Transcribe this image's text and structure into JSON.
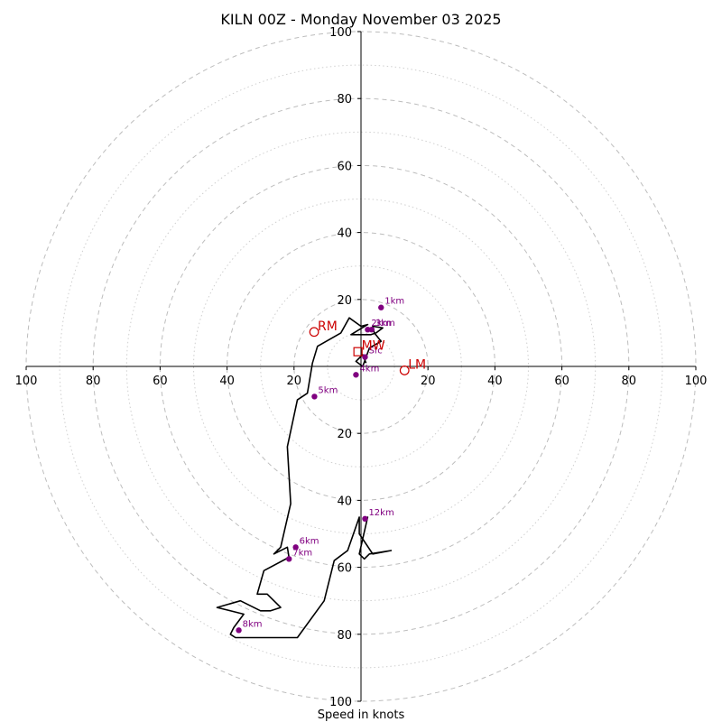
{
  "chart_data": {
    "type": "scatter",
    "title": "KILN 00Z - Monday November 03 2025",
    "xlabel": "Speed in knots",
    "ylabel": "",
    "xlim": [
      -100,
      100
    ],
    "ylim": [
      -100,
      100
    ],
    "major_rings": [
      20,
      40,
      60,
      80,
      100
    ],
    "minor_rings": [
      10,
      30,
      50,
      70,
      90
    ],
    "ticks": [
      {
        "v": -100,
        "label": "100"
      },
      {
        "v": -80,
        "label": "80"
      },
      {
        "v": -60,
        "label": "60"
      },
      {
        "v": -40,
        "label": "40"
      },
      {
        "v": -20,
        "label": "20"
      },
      {
        "v": 20,
        "label": "20"
      },
      {
        "v": 40,
        "label": "40"
      },
      {
        "v": 60,
        "label": "60"
      },
      {
        "v": 80,
        "label": "80"
      },
      {
        "v": 100,
        "label": "100"
      }
    ],
    "hodograph": {
      "u": [
        1.5,
        0.5,
        -1.5,
        0.5,
        2.5,
        6,
        4,
        3.5,
        6.5,
        4.5,
        3,
        0.5,
        -3,
        -0.5,
        2,
        0,
        -3.5,
        -6,
        -13,
        -14.5,
        -16,
        -19,
        -22,
        -21,
        -24,
        -26,
        -22,
        -21.5,
        -29,
        -31,
        -28,
        -24,
        -27,
        -30,
        -36,
        -43,
        -35,
        -38,
        -39,
        -37.5,
        -32,
        -27,
        -19,
        -11,
        -8,
        -4,
        -0.5,
        -0.5,
        3.5,
        9,
        2.5,
        1,
        -0.5,
        2,
        1.2
      ],
      "v": [
        1,
        3.5,
        1.5,
        0,
        5.5,
        7.5,
        10,
        12,
        11.5,
        10,
        9.5,
        9.5,
        9.5,
        11,
        12.5,
        12,
        14.5,
        10,
        6,
        1,
        -8,
        -10,
        -24,
        -41,
        -54,
        -56,
        -54,
        -57,
        -61,
        -68,
        -68,
        -72,
        -73,
        -73,
        -70,
        -72,
        -74,
        -78,
        -80,
        -81,
        -81,
        -81,
        -81,
        -70,
        -58,
        -55,
        -45,
        -50,
        -56,
        -55,
        -56,
        -57.5,
        -56,
        -45,
        -46
      ]
    },
    "height_markers": [
      {
        "label": "Sfc",
        "u": 1.2,
        "v": 2.8
      },
      {
        "label": "1km",
        "u": 6,
        "v": 17.6
      },
      {
        "label": "2km",
        "u": 2,
        "v": 11
      },
      {
        "label": "3km",
        "u": 3.2,
        "v": 11
      },
      {
        "label": "4km",
        "u": -1.5,
        "v": -2.5
      },
      {
        "label": "5km",
        "u": -13.9,
        "v": -9
      },
      {
        "label": "6km",
        "u": -19.5,
        "v": -54
      },
      {
        "label": "7km",
        "u": -21.5,
        "v": -57.5
      },
      {
        "label": "8km",
        "u": -36.5,
        "v": -78.8
      },
      {
        "label": "12km",
        "u": 1.2,
        "v": -45.5
      }
    ],
    "storm_motions": [
      {
        "label": "RM",
        "u": -14,
        "v": 10.3,
        "shape": "circle"
      },
      {
        "label": "LM",
        "u": 13,
        "v": -1.2,
        "shape": "circle"
      },
      {
        "label": "MW",
        "u": -0.9,
        "v": 4.4,
        "shape": "square"
      }
    ],
    "colors": {
      "hodograph": "#000000",
      "height_markers": "#800080",
      "storm_motion": "#cc0000",
      "grid": "#bdbdbd"
    }
  }
}
